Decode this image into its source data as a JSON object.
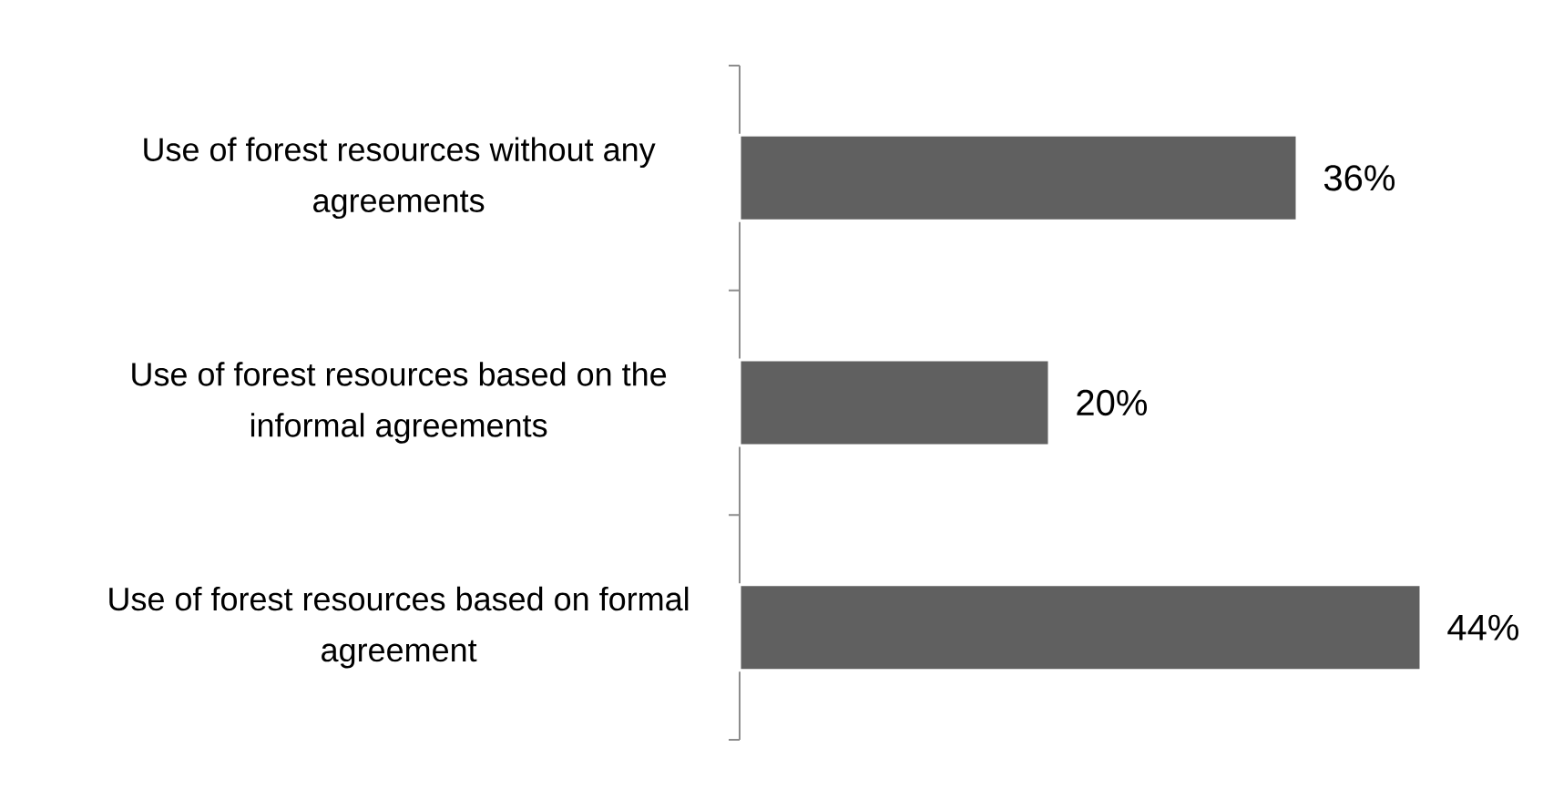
{
  "chart_data": {
    "type": "bar",
    "orientation": "horizontal",
    "categories": [
      "Use of forest resources without any agreements",
      "Use of forest resources based on the informal agreements",
      "Use of forest resources based on formal agreement"
    ],
    "values": [
      36,
      20,
      44
    ],
    "value_labels": [
      "36%",
      "20%",
      "44%"
    ],
    "color": "#606060"
  }
}
